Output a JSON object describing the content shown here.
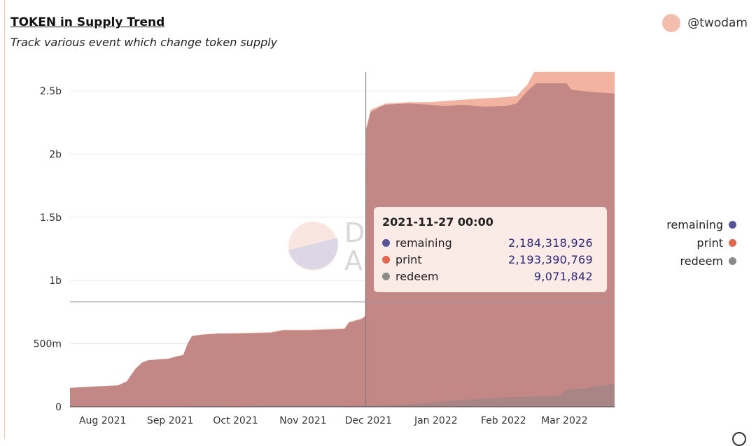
{
  "header": {
    "title": "TOKEN in Supply Trend",
    "subtitle": "Track various event which change token supply",
    "author": "@twodam"
  },
  "watermark": {
    "text_line1": "Du",
    "text_line2": "Ar"
  },
  "colors": {
    "remaining": "#55539a",
    "print": "#e4664c",
    "redeem": "#8a8a8a",
    "print_area": "#f2b3a0",
    "remaining_area": "#c08585",
    "redeem_area": "#9e8585"
  },
  "chart_data": {
    "type": "area",
    "title": "TOKEN in Supply Trend",
    "subtitle": "Track various event which change token supply",
    "xlabel": "",
    "ylabel": "",
    "ylim": [
      0,
      2650000000
    ],
    "y_ticks": [
      {
        "value": 0,
        "label": "0"
      },
      {
        "value": 500000000,
        "label": "500m"
      },
      {
        "value": 1000000000,
        "label": "1b"
      },
      {
        "value": 1500000000,
        "label": "1.5b"
      },
      {
        "value": 2000000000,
        "label": "2b"
      },
      {
        "value": 2500000000,
        "label": "2.5b"
      }
    ],
    "x_ticks": [
      {
        "day": 15,
        "label": "Aug 2021"
      },
      {
        "day": 46,
        "label": "Sep 2021"
      },
      {
        "day": 76,
        "label": "Oct 2021"
      },
      {
        "day": 107,
        "label": "Nov 2021"
      },
      {
        "day": 137,
        "label": "Dec 2021"
      },
      {
        "day": 168,
        "label": "Jan 2022"
      },
      {
        "day": 199,
        "label": "Feb 2022"
      },
      {
        "day": 227,
        "label": "Mar 2022"
      }
    ],
    "x_range_days": [
      0,
      250
    ],
    "series": [
      {
        "name": "print",
        "points": [
          [
            0,
            150000000
          ],
          [
            10,
            160000000
          ],
          [
            22,
            170000000
          ],
          [
            26,
            200000000
          ],
          [
            30,
            300000000
          ],
          [
            33,
            350000000
          ],
          [
            36,
            370000000
          ],
          [
            45,
            380000000
          ],
          [
            49,
            400000000
          ],
          [
            52,
            410000000
          ],
          [
            54,
            500000000
          ],
          [
            56,
            560000000
          ],
          [
            60,
            570000000
          ],
          [
            68,
            580000000
          ],
          [
            80,
            585000000
          ],
          [
            92,
            590000000
          ],
          [
            98,
            610000000
          ],
          [
            110,
            610000000
          ],
          [
            126,
            620000000
          ],
          [
            128,
            670000000
          ],
          [
            134,
            700000000
          ],
          [
            135.5,
            720000000
          ],
          [
            135.8,
            2193390769
          ],
          [
            138,
            2350000000
          ],
          [
            142,
            2380000000
          ],
          [
            145,
            2400000000
          ],
          [
            155,
            2410000000
          ],
          [
            165,
            2410000000
          ],
          [
            172,
            2420000000
          ],
          [
            180,
            2430000000
          ],
          [
            190,
            2440000000
          ],
          [
            200,
            2450000000
          ],
          [
            205,
            2460000000
          ],
          [
            210,
            2550000000
          ],
          [
            213,
            2650000000
          ],
          [
            250,
            2650000000
          ]
        ]
      },
      {
        "name": "remaining",
        "points": [
          [
            0,
            150000000
          ],
          [
            10,
            160000000
          ],
          [
            22,
            170000000
          ],
          [
            26,
            200000000
          ],
          [
            30,
            300000000
          ],
          [
            33,
            350000000
          ],
          [
            36,
            370000000
          ],
          [
            45,
            380000000
          ],
          [
            49,
            400000000
          ],
          [
            52,
            410000000
          ],
          [
            54,
            500000000
          ],
          [
            56,
            560000000
          ],
          [
            60,
            570000000
          ],
          [
            68,
            580000000
          ],
          [
            80,
            580000000
          ],
          [
            92,
            585000000
          ],
          [
            98,
            605000000
          ],
          [
            110,
            605000000
          ],
          [
            126,
            615000000
          ],
          [
            128,
            665000000
          ],
          [
            134,
            695000000
          ],
          [
            135.5,
            715000000
          ],
          [
            135.8,
            2184318926
          ],
          [
            138,
            2330000000
          ],
          [
            142,
            2370000000
          ],
          [
            145,
            2390000000
          ],
          [
            155,
            2400000000
          ],
          [
            165,
            2390000000
          ],
          [
            172,
            2380000000
          ],
          [
            180,
            2390000000
          ],
          [
            190,
            2375000000
          ],
          [
            200,
            2380000000
          ],
          [
            205,
            2400000000
          ],
          [
            210,
            2500000000
          ],
          [
            214,
            2560000000
          ],
          [
            228,
            2560000000
          ],
          [
            230,
            2510000000
          ],
          [
            240,
            2490000000
          ],
          [
            250,
            2480000000
          ]
        ]
      },
      {
        "name": "redeem",
        "points": [
          [
            0,
            0
          ],
          [
            135.8,
            9071842
          ],
          [
            150,
            15000000
          ],
          [
            160,
            25000000
          ],
          [
            170,
            40000000
          ],
          [
            180,
            55000000
          ],
          [
            190,
            65000000
          ],
          [
            200,
            75000000
          ],
          [
            210,
            80000000
          ],
          [
            218,
            85000000
          ],
          [
            225,
            90000000
          ],
          [
            228,
            140000000
          ],
          [
            236,
            145000000
          ],
          [
            240,
            160000000
          ],
          [
            250,
            180000000
          ]
        ]
      }
    ],
    "crosshair": {
      "day": 135.8,
      "value": 830000000
    },
    "tooltip": {
      "date": "2021-11-27 00:00",
      "rows": [
        {
          "name": "remaining",
          "value": "2,184,318,926"
        },
        {
          "name": "print",
          "value": "2,193,390,769"
        },
        {
          "name": "redeem",
          "value": "9,071,842"
        }
      ]
    },
    "legend": [
      "remaining",
      "print",
      "redeem"
    ],
    "legend_position": "right"
  }
}
